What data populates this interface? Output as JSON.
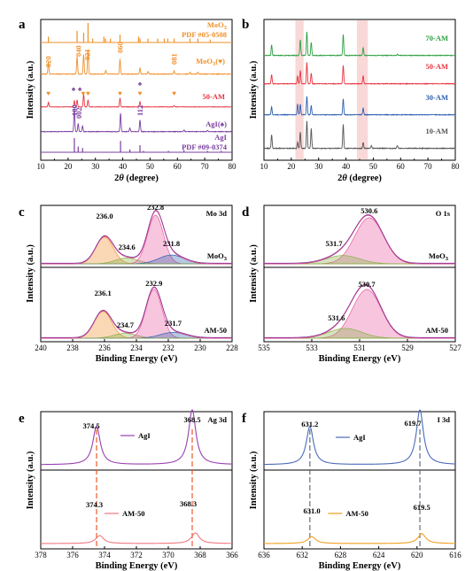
{
  "panels": [
    {
      "letter": "a",
      "xlabel": "2θ (degree)",
      "ylabel": "Intensity (a.u.)",
      "xlim": [
        10,
        80
      ],
      "xticks": [
        "10",
        "20",
        "30",
        "40",
        "50",
        "60",
        "70",
        "80"
      ],
      "traces": [
        {
          "label": "MoO3",
          "label2": "PDF #05-0508",
          "color": "#f0902a",
          "kind": "sticks",
          "peaks": [
            [
              12.8,
              0.3
            ],
            [
              23.3,
              0.6
            ],
            [
              25.7,
              0.5
            ],
            [
              27.3,
              1.0
            ],
            [
              29.0,
              0.2
            ],
            [
              33.1,
              0.3
            ],
            [
              33.7,
              0.2
            ],
            [
              35.5,
              0.2
            ],
            [
              39.0,
              0.4
            ],
            [
              45.8,
              0.3
            ],
            [
              46.3,
              0.2
            ],
            [
              49.2,
              0.2
            ],
            [
              52.8,
              0.2
            ],
            [
              55.2,
              0.2
            ],
            [
              56.5,
              0.2
            ],
            [
              58.8,
              0.2
            ],
            [
              64.6,
              0.2
            ],
            [
              67.5,
              0.2
            ],
            [
              72.0,
              0.15
            ]
          ]
        },
        {
          "label": "MoO3(♥)",
          "color": "#f0902a",
          "kind": "pattern",
          "peaks": [
            [
              12.8,
              0.5
            ],
            [
              23.3,
              0.7
            ],
            [
              25.7,
              0.8
            ],
            [
              27.3,
              1.0
            ],
            [
              33.8,
              0.15
            ],
            [
              39.0,
              0.6
            ],
            [
              46.3,
              0.25
            ],
            [
              49.3,
              0.1
            ],
            [
              58.8,
              0.12
            ],
            [
              64.6,
              0.08
            ],
            [
              67.5,
              0.08
            ]
          ]
        },
        {
          "label": "50-AM",
          "color": "#e8343f",
          "kind": "pattern",
          "peaks": [
            [
              12.8,
              0.25
            ],
            [
              22.3,
              0.35
            ],
            [
              23.3,
              0.4
            ],
            [
              25.7,
              0.7
            ],
            [
              27.3,
              0.4
            ],
            [
              39.0,
              0.5
            ],
            [
              46.3,
              0.3
            ],
            [
              58.8,
              0.08
            ]
          ]
        },
        {
          "label": "AgI(♠)",
          "color": "#7a3fa0",
          "kind": "pattern",
          "peaks": [
            [
              22.3,
              1.0
            ],
            [
              23.7,
              0.35
            ],
            [
              25.3,
              0.25
            ],
            [
              39.2,
              0.8
            ],
            [
              42.6,
              0.15
            ],
            [
              46.3,
              0.5
            ],
            [
              62.4,
              0.08
            ],
            [
              71.0,
              0.06
            ]
          ]
        },
        {
          "label": "AgI",
          "label2": "PDF #09-0374",
          "color": "#7a3fa0",
          "kind": "sticks",
          "peaks": [
            [
              22.3,
              1.0
            ],
            [
              23.7,
              0.4
            ],
            [
              25.3,
              0.3
            ],
            [
              39.2,
              0.8
            ],
            [
              42.6,
              0.2
            ],
            [
              46.3,
              0.5
            ],
            [
              47.6,
              0.1
            ],
            [
              56.7,
              0.1
            ],
            [
              62.4,
              0.15
            ],
            [
              71.0,
              0.1
            ],
            [
              76.0,
              0.1
            ]
          ]
        }
      ],
      "hkl_moo3": [
        "020",
        "040",
        "021",
        "060",
        "081"
      ],
      "hkl_agi": [
        "100",
        "002",
        "112"
      ]
    },
    {
      "letter": "b",
      "xlabel": "2θ (degree)",
      "ylabel": "Intensity (a.u.)",
      "xlim": [
        10,
        80
      ],
      "xticks": [
        "10",
        "20",
        "30",
        "40",
        "50",
        "60",
        "70",
        "80"
      ],
      "highlight": [
        [
          21.5,
          24.5
        ],
        [
          44.0,
          48.0
        ]
      ],
      "traces": [
        {
          "label": "70-AM",
          "color": "#2ea043",
          "peaks": [
            [
              12.8,
              0.4
            ],
            [
              23.3,
              0.6
            ],
            [
              25.7,
              0.9
            ],
            [
              27.3,
              0.5
            ],
            [
              39.0,
              0.8
            ],
            [
              46.3,
              0.3
            ],
            [
              58.8,
              0.05
            ]
          ]
        },
        {
          "label": "50-AM",
          "color": "#e8343f",
          "peaks": [
            [
              12.8,
              0.35
            ],
            [
              22.3,
              0.3
            ],
            [
              23.3,
              0.5
            ],
            [
              25.7,
              0.8
            ],
            [
              27.3,
              0.4
            ],
            [
              39.0,
              0.7
            ],
            [
              46.3,
              0.3
            ]
          ]
        },
        {
          "label": "30-AM",
          "color": "#3060b0",
          "peaks": [
            [
              12.8,
              0.3
            ],
            [
              22.3,
              0.4
            ],
            [
              23.3,
              0.4
            ],
            [
              25.7,
              0.7
            ],
            [
              27.3,
              0.35
            ],
            [
              39.0,
              0.6
            ],
            [
              46.3,
              0.25
            ]
          ]
        },
        {
          "label": "10-AM",
          "color": "#555555",
          "peaks": [
            [
              12.8,
              0.45
            ],
            [
              22.3,
              0.2
            ],
            [
              23.3,
              0.55
            ],
            [
              25.7,
              0.9
            ],
            [
              27.3,
              0.65
            ],
            [
              39.0,
              0.8
            ],
            [
              46.3,
              0.2
            ],
            [
              49.3,
              0.1
            ],
            [
              58.8,
              0.1
            ]
          ]
        }
      ]
    },
    {
      "letter": "c",
      "title": "Mo 3d",
      "xlabel": "Binding Energy (eV)",
      "ylabel": "Intensity (a.u.)",
      "xlim": [
        240,
        228
      ],
      "xticks": [
        "240",
        "238",
        "236",
        "234",
        "232",
        "230",
        "228"
      ],
      "subplots": [
        {
          "label": "MoO3",
          "peak_labels": [
            "236.0",
            "234.6",
            "232.8",
            "231.8"
          ],
          "peaks": [
            [
              236.0,
              0.55,
              0.55
            ],
            [
              234.6,
              0.12,
              0.7
            ],
            [
              232.8,
              1.0,
              0.5
            ],
            [
              231.8,
              0.18,
              0.8
            ]
          ]
        },
        {
          "label": "AM-50",
          "peak_labels": [
            "236.1",
            "234.7",
            "232.9",
            "231.7"
          ],
          "peaks": [
            [
              236.1,
              0.55,
              0.55
            ],
            [
              234.7,
              0.1,
              0.7
            ],
            [
              232.9,
              1.0,
              0.5
            ],
            [
              231.7,
              0.12,
              0.8
            ]
          ]
        }
      ]
    },
    {
      "letter": "d",
      "title": "O 1s",
      "xlabel": "Binding Energy (eV)",
      "ylabel": "Intensity (a.u.)",
      "xlim": [
        535,
        527
      ],
      "xticks": [
        "535",
        "533",
        "531",
        "529",
        "527"
      ],
      "subplots": [
        {
          "label": "MoO3",
          "peak_labels": [
            "530.6",
            "531.7"
          ],
          "peaks": [
            [
              530.6,
              1.0,
              0.6
            ],
            [
              531.7,
              0.18,
              0.7
            ]
          ]
        },
        {
          "label": "AM-50",
          "peak_labels": [
            "530.7",
            "531.6"
          ],
          "peaks": [
            [
              530.7,
              1.0,
              0.6
            ],
            [
              531.6,
              0.2,
              0.7
            ]
          ]
        }
      ]
    },
    {
      "letter": "e",
      "title": "Ag 3d",
      "xlabel": "Binding Energy (eV)",
      "ylabel": "Intensity (a.u.)",
      "xlim": [
        378,
        366
      ],
      "xticks": [
        "378",
        "376",
        "374",
        "372",
        "370",
        "368",
        "366"
      ],
      "dashed": [
        374.5,
        368.5
      ],
      "subplots": [
        {
          "label": "AgI",
          "color": "#9b3fb0",
          "peak_labels": [
            "374.5",
            "368.5"
          ],
          "peaks": [
            [
              374.5,
              0.7,
              0.28
            ],
            [
              368.5,
              1.0,
              0.28
            ]
          ]
        },
        {
          "label": "AM-50",
          "color": "#f07880",
          "peak_labels": [
            "374.3",
            "368.3"
          ],
          "peaks": [
            [
              374.3,
              0.3,
              0.3
            ],
            [
              368.3,
              0.4,
              0.3
            ]
          ]
        }
      ]
    },
    {
      "letter": "f",
      "title": "I 3d",
      "xlabel": "Binding Energy (eV)",
      "ylabel": "Intensity (a.u.)",
      "xlim": [
        636,
        616
      ],
      "xticks": [
        "636",
        "632",
        "628",
        "624",
        "620",
        "616"
      ],
      "dashed": [
        631.2,
        619.7
      ],
      "subplots": [
        {
          "label": "AgI",
          "color": "#4a6ab8",
          "peak_labels": [
            "631.2",
            "619.7"
          ],
          "peaks": [
            [
              631.2,
              0.7,
              0.45
            ],
            [
              619.7,
              1.0,
              0.45
            ]
          ]
        },
        {
          "label": "AM-50",
          "color": "#f0a020",
          "peak_labels": [
            "631.0",
            "619.5"
          ],
          "peaks": [
            [
              631.0,
              0.28,
              0.5
            ],
            [
              619.5,
              0.4,
              0.5
            ]
          ]
        }
      ]
    }
  ],
  "chart_data": [
    {
      "type": "line",
      "panel": "a",
      "xlabel": "2θ (degree)",
      "ylabel": "Intensity (a.u.)",
      "xlim": [
        10,
        80
      ],
      "series": [
        {
          "name": "MoO3 PDF #05-0508"
        },
        {
          "name": "MoO3"
        },
        {
          "name": "50-AM"
        },
        {
          "name": "AgI"
        },
        {
          "name": "AgI PDF #09-0374"
        }
      ]
    },
    {
      "type": "line",
      "panel": "b",
      "xlabel": "2θ (degree)",
      "ylabel": "Intensity (a.u.)",
      "xlim": [
        10,
        80
      ],
      "series": [
        {
          "name": "70-AM"
        },
        {
          "name": "50-AM"
        },
        {
          "name": "30-AM"
        },
        {
          "name": "10-AM"
        }
      ]
    },
    {
      "type": "line",
      "panel": "c",
      "title": "Mo 3d",
      "xlabel": "Binding Energy (eV)",
      "ylabel": "Intensity (a.u.)",
      "xlim": [
        240,
        228
      ],
      "series": [
        {
          "name": "MoO3",
          "peaks": [
            236.0,
            234.6,
            232.8,
            231.8
          ]
        },
        {
          "name": "AM-50",
          "peaks": [
            236.1,
            234.7,
            232.9,
            231.7
          ]
        }
      ]
    },
    {
      "type": "line",
      "panel": "d",
      "title": "O 1s",
      "xlabel": "Binding Energy (eV)",
      "ylabel": "Intensity (a.u.)",
      "xlim": [
        535,
        527
      ],
      "series": [
        {
          "name": "MoO3",
          "peaks": [
            530.6,
            531.7
          ]
        },
        {
          "name": "AM-50",
          "peaks": [
            530.7,
            531.6
          ]
        }
      ]
    },
    {
      "type": "line",
      "panel": "e",
      "title": "Ag 3d",
      "xlabel": "Binding Energy (eV)",
      "ylabel": "Intensity (a.u.)",
      "xlim": [
        378,
        366
      ],
      "series": [
        {
          "name": "AgI",
          "peaks": [
            374.5,
            368.5
          ]
        },
        {
          "name": "AM-50",
          "peaks": [
            374.3,
            368.3
          ]
        }
      ]
    },
    {
      "type": "line",
      "panel": "f",
      "title": "I 3d",
      "xlabel": "Binding Energy (eV)",
      "ylabel": "Intensity (a.u.)",
      "xlim": [
        636,
        616
      ],
      "series": [
        {
          "name": "AgI",
          "peaks": [
            631.2,
            619.7
          ]
        },
        {
          "name": "AM-50",
          "peaks": [
            631.0,
            619.5
          ]
        }
      ]
    }
  ]
}
